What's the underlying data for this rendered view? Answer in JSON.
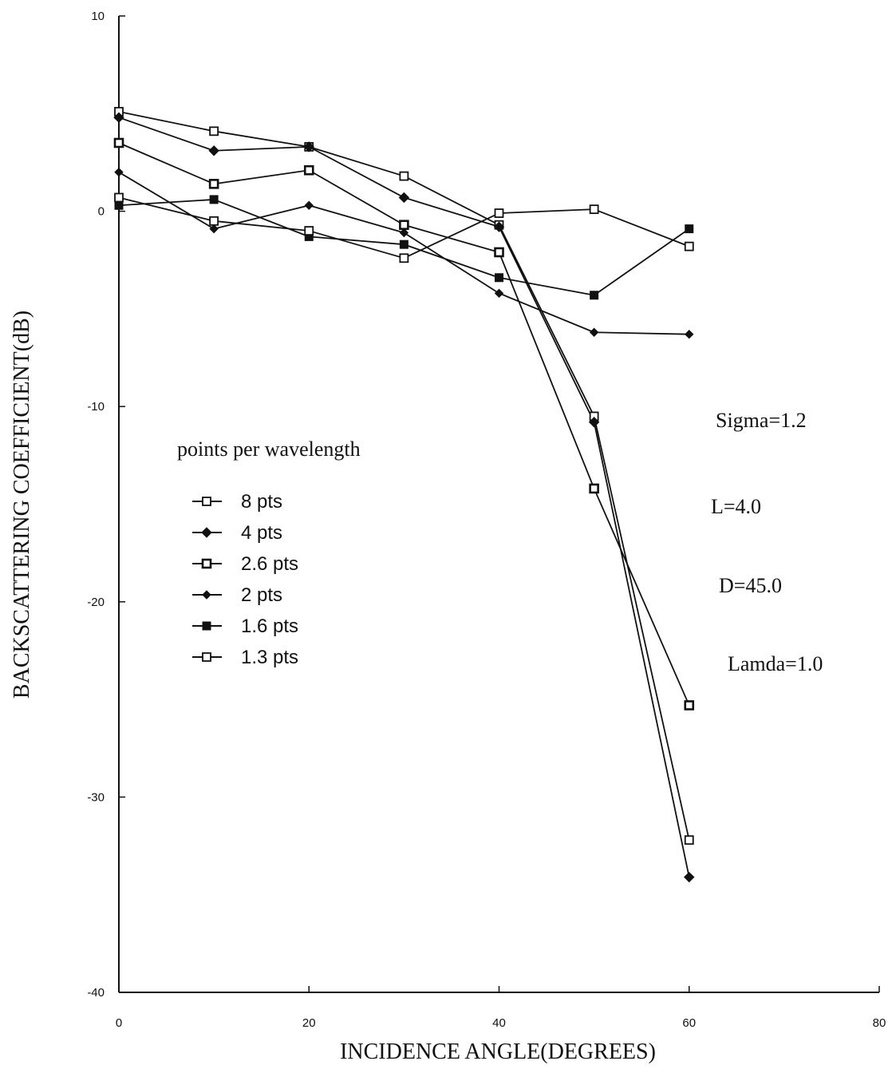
{
  "chart_data": {
    "type": "line",
    "xlabel": "INCIDENCE ANGLE(DEGREES)",
    "ylabel": "BACKSCATTERING COEFFICIENT(dB)",
    "xlim": [
      0,
      80
    ],
    "ylim": [
      -40,
      10
    ],
    "x_ticks": [
      "0",
      "20",
      "40",
      "60",
      "80"
    ],
    "y_ticks": [
      "10",
      "0",
      "-10",
      "-20",
      "-30",
      "-40"
    ],
    "grid": false,
    "legend_title": "points per wavelength",
    "legend_position": "center-left",
    "x": [
      0,
      10,
      20,
      30,
      40,
      50,
      60
    ],
    "series": [
      {
        "name": "8 pts",
        "marker": "open-square",
        "values": [
          5.1,
          4.1,
          3.3,
          1.8,
          -0.7,
          -10.5,
          -32.2
        ]
      },
      {
        "name": "4 pts",
        "marker": "filled-diamond",
        "values": [
          4.8,
          3.1,
          3.3,
          0.7,
          -0.8,
          -10.8,
          -34.1
        ]
      },
      {
        "name": "2.6 pts",
        "marker": "dotted-square",
        "values": [
          3.5,
          1.4,
          2.1,
          -0.7,
          -2.1,
          -14.2,
          -25.3
        ]
      },
      {
        "name": "2 pts",
        "marker": "small-diamond",
        "values": [
          2.0,
          -0.9,
          0.3,
          -1.1,
          -4.2,
          -6.2,
          -6.3
        ]
      },
      {
        "name": "1.6 pts",
        "marker": "filled-square",
        "values": [
          0.3,
          0.6,
          -1.3,
          -1.7,
          -3.4,
          -4.3,
          -0.9
        ]
      },
      {
        "name": "1.3 pts",
        "marker": "open-square",
        "values": [
          0.7,
          -0.5,
          -1.0,
          -2.4,
          -0.1,
          0.1,
          -1.8
        ]
      }
    ],
    "annotations": [
      "Sigma=1.2",
      "L=4.0",
      "D=45.0",
      "Lamda=1.0"
    ]
  }
}
